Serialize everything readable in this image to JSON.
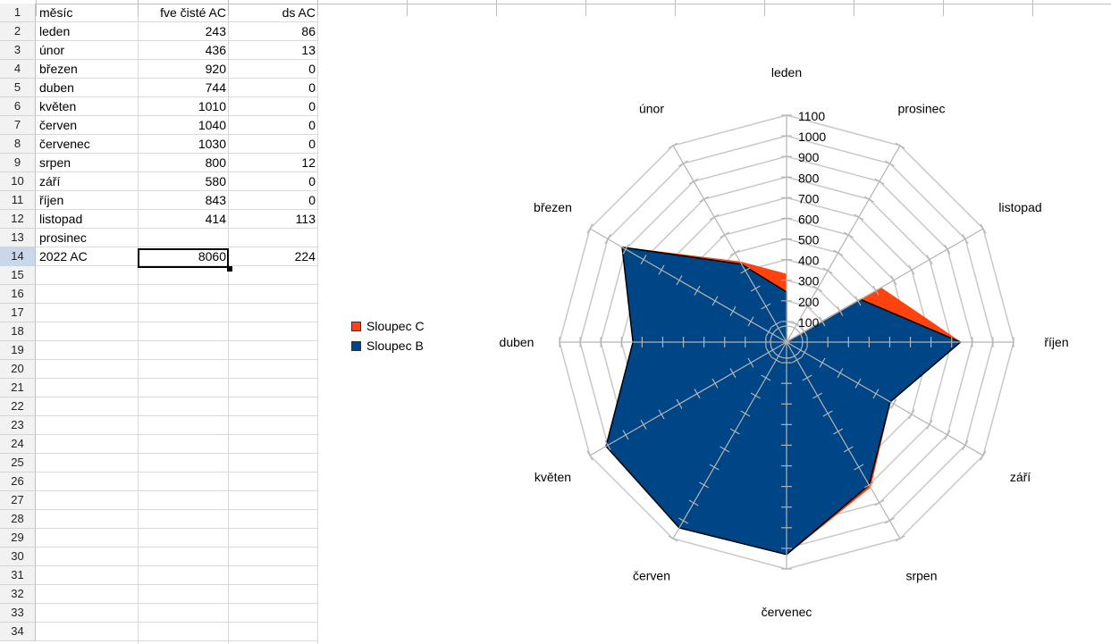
{
  "sheet": {
    "row_numbers": [
      "1",
      "2",
      "3",
      "4",
      "5",
      "6",
      "7",
      "8",
      "9",
      "10",
      "11",
      "12",
      "13",
      "14",
      "15",
      "16",
      "17",
      "18",
      "19",
      "20",
      "21",
      "22",
      "23",
      "24",
      "25",
      "26",
      "27",
      "28",
      "29",
      "30",
      "31",
      "32",
      "33",
      "34"
    ],
    "active_row": "14",
    "rows": [
      {
        "a": "měsíc",
        "b": "fve čisté AC",
        "c": "ds AC"
      },
      {
        "a": "leden",
        "b": "243",
        "c": "86"
      },
      {
        "a": "únor",
        "b": "436",
        "c": "13"
      },
      {
        "a": "březen",
        "b": "920",
        "c": "0"
      },
      {
        "a": "duben",
        "b": "744",
        "c": "0"
      },
      {
        "a": "květen",
        "b": "1010",
        "c": "0"
      },
      {
        "a": "červen",
        "b": "1040",
        "c": "0"
      },
      {
        "a": "červenec",
        "b": "1030",
        "c": "0"
      },
      {
        "a": "srpen",
        "b": "800",
        "c": "12"
      },
      {
        "a": "září",
        "b": "580",
        "c": "0"
      },
      {
        "a": "říjen",
        "b": "843",
        "c": "0"
      },
      {
        "a": "listopad",
        "b": "414",
        "c": "113"
      },
      {
        "a": "prosinec",
        "b": "",
        "c": ""
      },
      {
        "a": "2022 AC",
        "b": "8060",
        "c": "224"
      }
    ]
  },
  "chart_data": {
    "type": "radar",
    "categories": [
      "leden",
      "prosinec",
      "listopad",
      "říjen",
      "září",
      "srpen",
      "červenec",
      "červen",
      "květen",
      "duben",
      "březen",
      "únor"
    ],
    "series": [
      {
        "name": "Sloupec C",
        "color": "#ff420e",
        "values": [
          329,
          0,
          527,
          843,
          580,
          812,
          1030,
          1040,
          1010,
          744,
          920,
          449
        ]
      },
      {
        "name": "Sloupec B",
        "color": "#004586",
        "values": [
          243,
          0,
          414,
          843,
          580,
          800,
          1030,
          1040,
          1010,
          744,
          920,
          436
        ]
      }
    ],
    "rlim": [
      0,
      1100
    ],
    "ticks": [
      "100",
      "200",
      "300",
      "400",
      "500",
      "600",
      "700",
      "800",
      "900",
      "1000",
      "1100"
    ],
    "legend": "left"
  }
}
